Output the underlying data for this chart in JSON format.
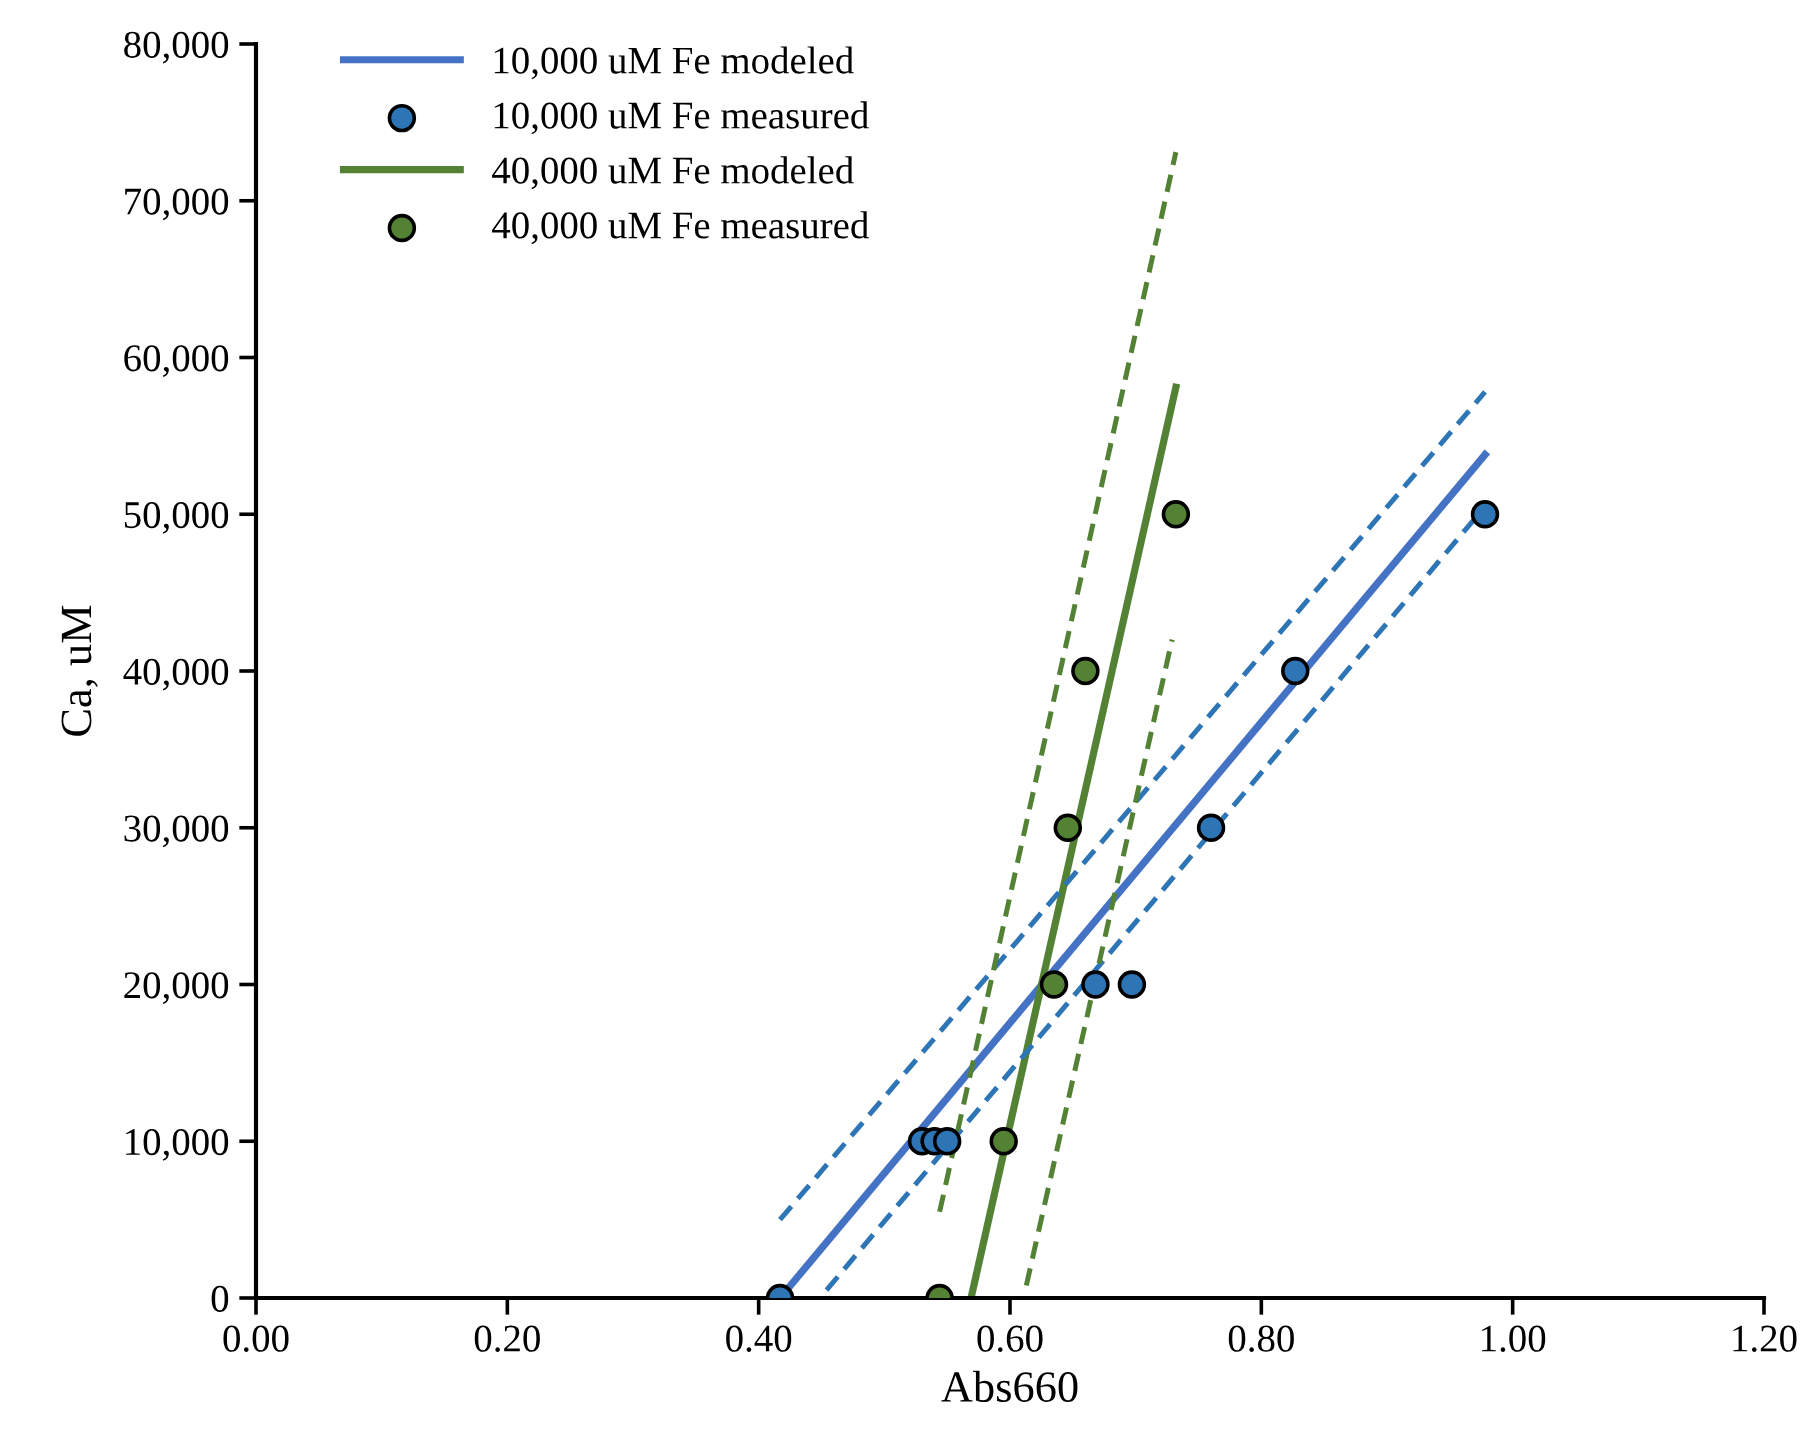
{
  "chart_data": {
    "type": "scatter",
    "xlabel": "Abs660",
    "ylabel": "Ca, uM",
    "xlim": [
      0,
      1.2
    ],
    "xticks": [
      {
        "value": 0,
        "label": "0.00"
      },
      {
        "value": 0.2,
        "label": "0.20"
      },
      {
        "value": 0.4,
        "label": "0.40"
      },
      {
        "value": 0.6,
        "label": "0.60"
      },
      {
        "value": 0.8,
        "label": "0.80"
      },
      {
        "value": 1.0,
        "label": "1.00"
      },
      {
        "value": 1.2,
        "label": "1.20"
      }
    ],
    "ylim": [
      0,
      80000
    ],
    "yticks": [
      {
        "value": 0,
        "label": "0"
      },
      {
        "value": 10000,
        "label": "10,000"
      },
      {
        "value": 20000,
        "label": "20,000"
      },
      {
        "value": 30000,
        "label": "30,000"
      },
      {
        "value": 40000,
        "label": "40,000"
      },
      {
        "value": 50000,
        "label": "50,000"
      },
      {
        "value": 60000,
        "label": "60,000"
      },
      {
        "value": 70000,
        "label": "70,000"
      },
      {
        "value": 80000,
        "label": "80,000"
      }
    ],
    "grid": false,
    "legend": "top left",
    "series": [
      {
        "name": "10,000 uM Fe modeled",
        "type": "line",
        "color": "#4472c4",
        "line_style": "solid",
        "marker": "none",
        "x": [
          0.417,
          0.978
        ],
        "values": [
          0,
          53800
        ]
      },
      {
        "name": "10,000 uM Fe measured",
        "color": "#2e75b6",
        "marker": "circle",
        "x": [
          0.417,
          0.53,
          0.54,
          0.55,
          0.668,
          0.697,
          0.76,
          0.827,
          0.978
        ],
        "values": [
          0,
          10000,
          10000,
          10000,
          20000,
          20000,
          30000,
          40000,
          50000
        ]
      },
      {
        "name": "40,000 uM Fe modeled",
        "type": "line",
        "color": "#548235",
        "line_style": "solid",
        "marker": "none",
        "x": [
          0.569,
          0.732
        ],
        "values": [
          0,
          58100
        ]
      },
      {
        "name": "40,000 uM Fe measured",
        "color": "#548235",
        "marker": "circle",
        "x": [
          0.544,
          0.595,
          0.635,
          0.646,
          0.66,
          0.732
        ],
        "values": [
          0,
          10000,
          20000,
          30000,
          40000,
          50000
        ]
      },
      {
        "type": "line",
        "color": "#2e75b6",
        "line_style": "dashed",
        "marker": "none",
        "x": [
          0.417,
          0.978
        ],
        "values": [
          5000,
          57800
        ]
      },
      {
        "type": "line",
        "color": "#2e75b6",
        "line_style": "dashed",
        "marker": "none",
        "x": [
          0.454,
          0.978
        ],
        "values": [
          500,
          50500
        ]
      },
      {
        "type": "line",
        "color": "#548235",
        "line_style": "dashed",
        "marker": "none",
        "x": [
          0.544,
          0.732
        ],
        "values": [
          5500,
          73100
        ]
      },
      {
        "type": "line",
        "color": "#548235",
        "line_style": "dashed",
        "marker": "none",
        "x": [
          0.613,
          0.729
        ],
        "values": [
          800,
          42000
        ]
      }
    ]
  }
}
